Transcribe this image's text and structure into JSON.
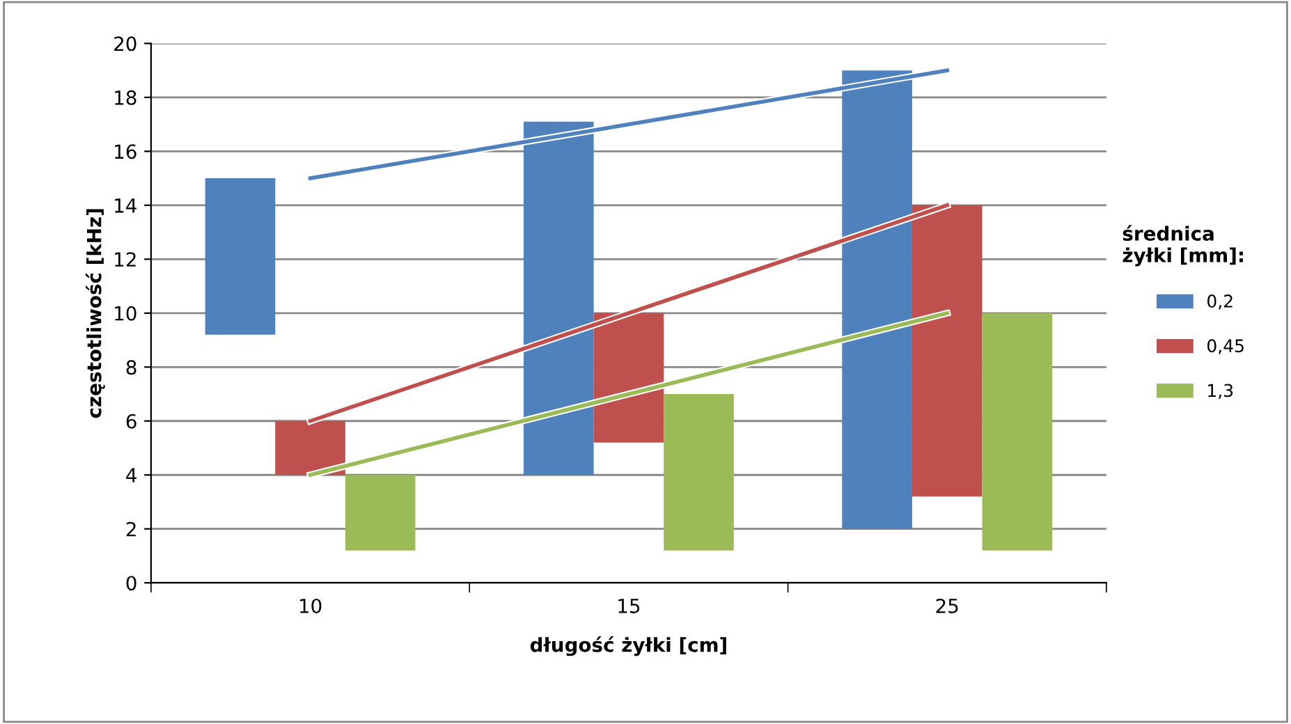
{
  "chart_data": {
    "type": "bar",
    "xlabel": "długość żyłki [cm]",
    "ylabel": "częstotliwość [kHz]",
    "legend_title": "średnica\nżyłki [mm]:",
    "categories": [
      "10",
      "15",
      "25"
    ],
    "series": [
      {
        "name": "0,2",
        "color": "#4f81bd",
        "values": [
          5.8,
          13.1,
          17
        ],
        "base": [
          9.2,
          4,
          2
        ]
      },
      {
        "name": "0,45",
        "color": "#c0504d",
        "values": [
          2,
          4.8,
          10.8
        ],
        "base": [
          4,
          5.2,
          3.2
        ]
      },
      {
        "name": "1,3",
        "color": "#9bbb59",
        "values": [
          2.8,
          5.8,
          8.8
        ],
        "base": [
          1.2,
          1.2,
          1.2
        ]
      },
      {
        "type": "line",
        "color": "#4f81bd",
        "x": [
          "10",
          "25"
        ],
        "values": [
          15,
          19
        ]
      },
      {
        "type": "line",
        "color": "#c0504d",
        "x": [
          "10",
          "25"
        ],
        "values": [
          6,
          14
        ]
      },
      {
        "type": "line",
        "color": "#9bbb59",
        "x": [
          "10",
          "25"
        ],
        "values": [
          4,
          10
        ]
      }
    ],
    "ylim": [
      0,
      20
    ],
    "yticks": [
      0,
      2,
      4,
      6,
      8,
      10,
      12,
      14,
      16,
      18,
      20
    ],
    "grid": "y",
    "legend": "right"
  }
}
